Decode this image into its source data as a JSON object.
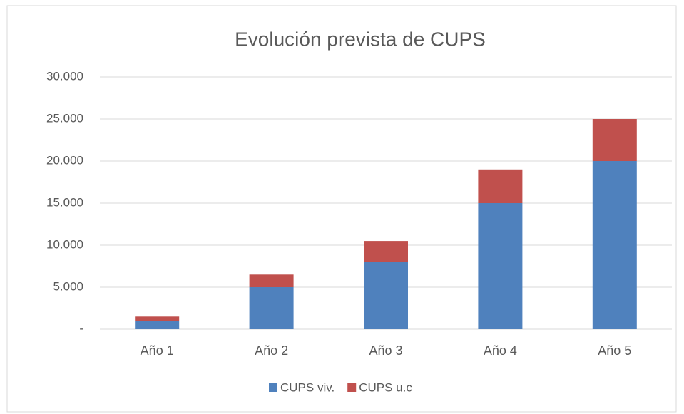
{
  "chart_data": {
    "type": "stacked_bar",
    "title": "Evolución prevista de CUPS",
    "categories": [
      "Año 1",
      "Año 2",
      "Año 3",
      "Año 4",
      "Año 5"
    ],
    "series": [
      {
        "name": "CUPS viv.",
        "color": "#4f81bd",
        "values": [
          1000,
          5000,
          8000,
          15000,
          20000
        ]
      },
      {
        "name": "CUPS u.c",
        "color": "#c0504d",
        "values": [
          500,
          1500,
          2500,
          4000,
          5000
        ]
      }
    ],
    "ylim": [
      0,
      30000
    ],
    "yticks": [
      {
        "value": 0,
        "label": "-"
      },
      {
        "value": 5000,
        "label": "5.000"
      },
      {
        "value": 10000,
        "label": "10.000"
      },
      {
        "value": 15000,
        "label": "15.000"
      },
      {
        "value": 20000,
        "label": "20.000"
      },
      {
        "value": 25000,
        "label": "25.000"
      },
      {
        "value": 30000,
        "label": "30.000"
      }
    ],
    "grid": true,
    "legend": "bottom"
  }
}
